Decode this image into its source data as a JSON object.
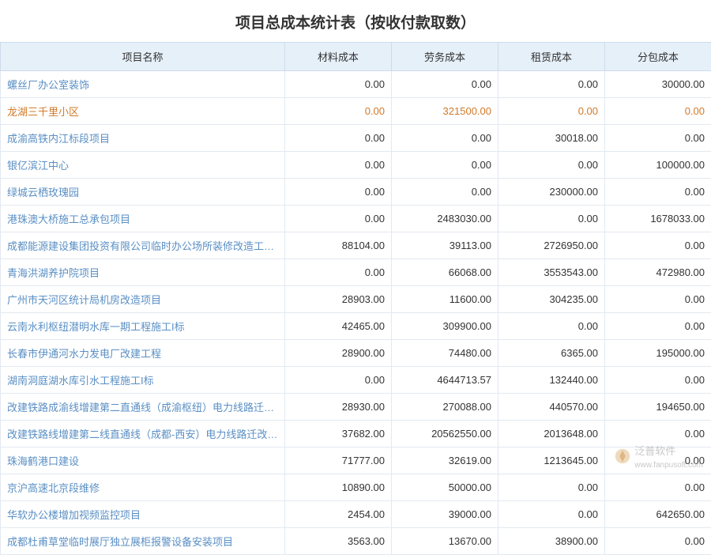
{
  "title": "项目总成本统计表（按收付款取数）",
  "columns": [
    "项目名称",
    "材料成本",
    "劳务成本",
    "租赁成本",
    "分包成本"
  ],
  "colors": {
    "header_bg": "#e6f0f9",
    "header_border": "#cddceb",
    "cell_border": "#e2e9f0",
    "link_color": "#5a8fc4",
    "highlight_color": "#d17a2a",
    "text_color": "#333333",
    "watermark_color": "#b0b0b0"
  },
  "rows": [
    {
      "name": "螺丝厂办公室装饰",
      "values": [
        "0.00",
        "0.00",
        "0.00",
        "30000.00"
      ],
      "highlight": false
    },
    {
      "name": "龙湖三千里小区",
      "values": [
        "0.00",
        "321500.00",
        "0.00",
        "0.00"
      ],
      "highlight": true
    },
    {
      "name": "成渝高铁内江标段项目",
      "values": [
        "0.00",
        "0.00",
        "30018.00",
        "0.00"
      ],
      "highlight": false
    },
    {
      "name": "银亿滨江中心",
      "values": [
        "0.00",
        "0.00",
        "0.00",
        "100000.00"
      ],
      "highlight": false
    },
    {
      "name": "绿城云栖玫瑰园",
      "values": [
        "0.00",
        "0.00",
        "230000.00",
        "0.00"
      ],
      "highlight": false
    },
    {
      "name": "港珠澳大桥施工总承包项目",
      "values": [
        "0.00",
        "2483030.00",
        "0.00",
        "1678033.00"
      ],
      "highlight": false
    },
    {
      "name": "成都能源建设集团投资有限公司临时办公场所装修改造工程EPC",
      "values": [
        "88104.00",
        "39113.00",
        "2726950.00",
        "0.00"
      ],
      "highlight": false
    },
    {
      "name": "青海洪湖养护院项目",
      "values": [
        "0.00",
        "66068.00",
        "3553543.00",
        "472980.00"
      ],
      "highlight": false
    },
    {
      "name": "广州市天河区统计局机房改造项目",
      "values": [
        "28903.00",
        "11600.00",
        "304235.00",
        "0.00"
      ],
      "highlight": false
    },
    {
      "name": "云南水利枢纽潜明水库一期工程施工I标",
      "values": [
        "42465.00",
        "309900.00",
        "0.00",
        "0.00"
      ],
      "highlight": false
    },
    {
      "name": "长春市伊通河水力发电厂改建工程",
      "values": [
        "28900.00",
        "74480.00",
        "6365.00",
        "195000.00"
      ],
      "highlight": false
    },
    {
      "name": "湖南洞庭湖水库引水工程施工I标",
      "values": [
        "0.00",
        "4644713.57",
        "132440.00",
        "0.00"
      ],
      "highlight": false
    },
    {
      "name": "改建铁路成渝线增建第二直通线（成渝枢纽）电力线路迁改工程",
      "values": [
        "28930.00",
        "270088.00",
        "440570.00",
        "194650.00"
      ],
      "highlight": false
    },
    {
      "name": "改建铁路线增建第二线直通线（成都-西安）电力线路迁改工程",
      "values": [
        "37682.00",
        "20562550.00",
        "2013648.00",
        "0.00"
      ],
      "highlight": false
    },
    {
      "name": "珠海鹤港口建设",
      "values": [
        "71777.00",
        "32619.00",
        "1213645.00",
        "0.00"
      ],
      "highlight": false
    },
    {
      "name": "京沪高速北京段维修",
      "values": [
        "10890.00",
        "50000.00",
        "0.00",
        "0.00"
      ],
      "highlight": false
    },
    {
      "name": "华软办公楼增加视频监控项目",
      "values": [
        "2454.00",
        "39000.00",
        "0.00",
        "642650.00"
      ],
      "highlight": false
    },
    {
      "name": "成都杜甫草堂临时展厅独立展柜报警设备安装项目",
      "values": [
        "3563.00",
        "13670.00",
        "38900.00",
        "0.00"
      ],
      "highlight": false
    }
  ],
  "watermark": {
    "text": "泛普软件",
    "url": "www.fanpusoft.com"
  }
}
